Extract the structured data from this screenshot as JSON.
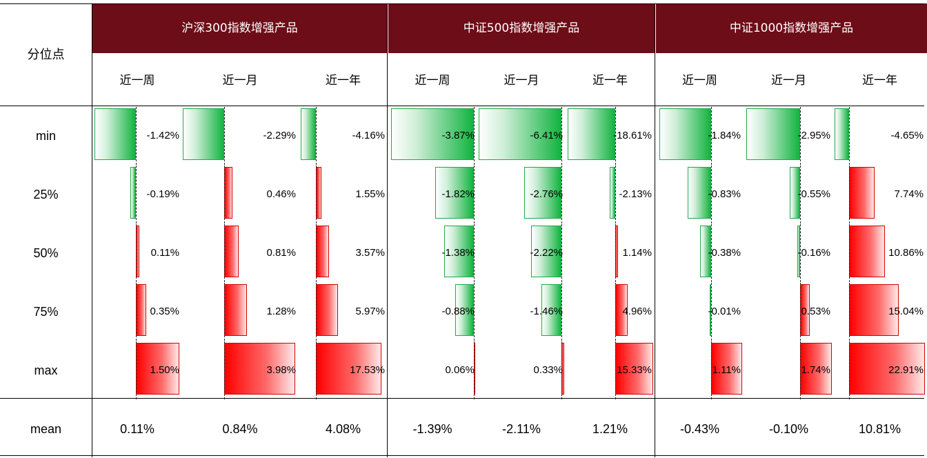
{
  "table": {
    "corner_label": "分位点",
    "groups": [
      {
        "title": "沪深300指数增强产品"
      },
      {
        "title": "中证500指数增强产品"
      },
      {
        "title": "中证1000指数增强产品"
      }
    ],
    "sub_labels": [
      "近一周",
      "近一月",
      "近一年"
    ],
    "row_labels": [
      "min",
      "25%",
      "50%",
      "75%",
      "max"
    ],
    "mean_label": "mean"
  },
  "colors": {
    "header_band": "#6c0d18",
    "negative_bar": "#12b440",
    "positive_bar": "#ff0000"
  },
  "chart_data": {
    "type": "table",
    "rows": [
      "min",
      "25%",
      "50%",
      "75%",
      "max",
      "mean"
    ],
    "columns": [
      {
        "group": "沪深300指数增强产品",
        "period": "近一周",
        "values": [
          -1.42,
          -0.19,
          0.11,
          0.35,
          1.5
        ],
        "labels": [
          "-1.42%",
          "-0.19%",
          "0.11%",
          "0.35%",
          "1.50%"
        ],
        "mean": "0.11%"
      },
      {
        "group": "沪深300指数增强产品",
        "period": "近一月",
        "values": [
          -2.29,
          0.46,
          0.81,
          1.28,
          3.98
        ],
        "labels": [
          "-2.29%",
          "0.46%",
          "0.81%",
          "1.28%",
          "3.98%"
        ],
        "mean": "0.84%"
      },
      {
        "group": "沪深300指数增强产品",
        "period": "近一年",
        "values": [
          -4.16,
          1.55,
          3.57,
          5.97,
          17.53
        ],
        "labels": [
          "-4.16%",
          "1.55%",
          "3.57%",
          "5.97%",
          "17.53%"
        ],
        "mean": "4.08%"
      },
      {
        "group": "中证500指数增强产品",
        "period": "近一周",
        "values": [
          -3.87,
          -1.82,
          -1.38,
          -0.88,
          0.06
        ],
        "labels": [
          "-3.87%",
          "-1.82%",
          "-1.38%",
          "-0.88%",
          "0.06%"
        ],
        "mean": "-1.39%"
      },
      {
        "group": "中证500指数增强产品",
        "period": "近一月",
        "values": [
          -6.41,
          -2.76,
          -2.22,
          -1.46,
          0.33
        ],
        "labels": [
          "-6.41%",
          "-2.76%",
          "-2.22%",
          "-1.46%",
          "0.33%"
        ],
        "mean": "-2.11%"
      },
      {
        "group": "中证500指数增强产品",
        "period": "近一年",
        "values": [
          -18.61,
          -2.13,
          1.14,
          4.96,
          15.33
        ],
        "labels": [
          "-18.61%",
          "-2.13%",
          "1.14%",
          "4.96%",
          "15.33%"
        ],
        "mean": "1.21%"
      },
      {
        "group": "中证1000指数增强产品",
        "period": "近一周",
        "values": [
          -1.84,
          -0.83,
          -0.38,
          -0.01,
          1.11
        ],
        "labels": [
          "-1.84%",
          "-0.83%",
          "-0.38%",
          "-0.01%",
          "1.11%"
        ],
        "mean": "-0.43%"
      },
      {
        "group": "中证1000指数增强产品",
        "period": "近一月",
        "values": [
          -2.95,
          -0.55,
          -0.16,
          0.53,
          1.74
        ],
        "labels": [
          "-2.95%",
          "-0.55%",
          "-0.16%",
          "0.53%",
          "1.74%"
        ],
        "mean": "-0.10%"
      },
      {
        "group": "中证1000指数增强产品",
        "period": "近一年",
        "values": [
          -4.65,
          7.74,
          10.86,
          15.04,
          22.91
        ],
        "labels": [
          "-4.65%",
          "7.74%",
          "10.86%",
          "15.04%",
          "22.91%"
        ],
        "mean": "10.81%"
      }
    ]
  }
}
